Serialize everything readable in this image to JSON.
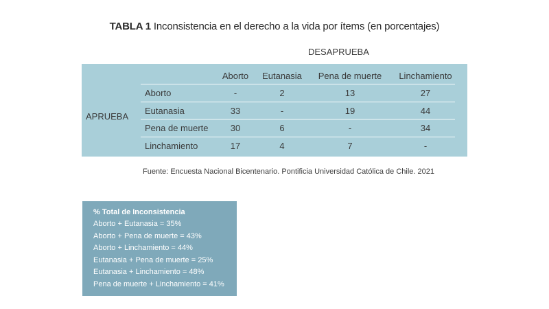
{
  "title": {
    "tag": "TABLA 1",
    "text": "Inconsistencia en el derecho  a la vida por ítems (en porcentajes)"
  },
  "table": {
    "col_group_label": "DESAPRUEBA",
    "row_group_label": "APRUEBA",
    "columns": [
      "Aborto",
      "Eutanasia",
      "Pena de muerte",
      "Linchamiento"
    ],
    "rows": [
      {
        "label": "Aborto",
        "values": [
          "-",
          "2",
          "13",
          "27"
        ]
      },
      {
        "label": "Eutanasia",
        "values": [
          "33",
          "-",
          "19",
          "44"
        ]
      },
      {
        "label": "Pena de muerte",
        "values": [
          "30",
          "6",
          "-",
          "34"
        ]
      },
      {
        "label": "Linchamiento",
        "values": [
          "17",
          "4",
          "7",
          "-"
        ]
      }
    ]
  },
  "source": "Fuente: Encuesta Nacional Bicentenario. Pontificia Universidad Católica de Chile. 2021",
  "summary": {
    "title": "% Total de Inconsistencia",
    "lines": [
      "Aborto + Eutanasia = 35%",
      "Aborto + Pena de muerte = 43%",
      "Aborto + Linchamiento = 44%",
      "Eutanasia + Pena de muerte = 25%",
      "Eutanasia + Linchamiento = 48%",
      "Pena de muerte + Linchamiento = 41%"
    ]
  },
  "colors": {
    "table_background": "#a9cfd9",
    "summary_background": "#7fa9ba"
  }
}
